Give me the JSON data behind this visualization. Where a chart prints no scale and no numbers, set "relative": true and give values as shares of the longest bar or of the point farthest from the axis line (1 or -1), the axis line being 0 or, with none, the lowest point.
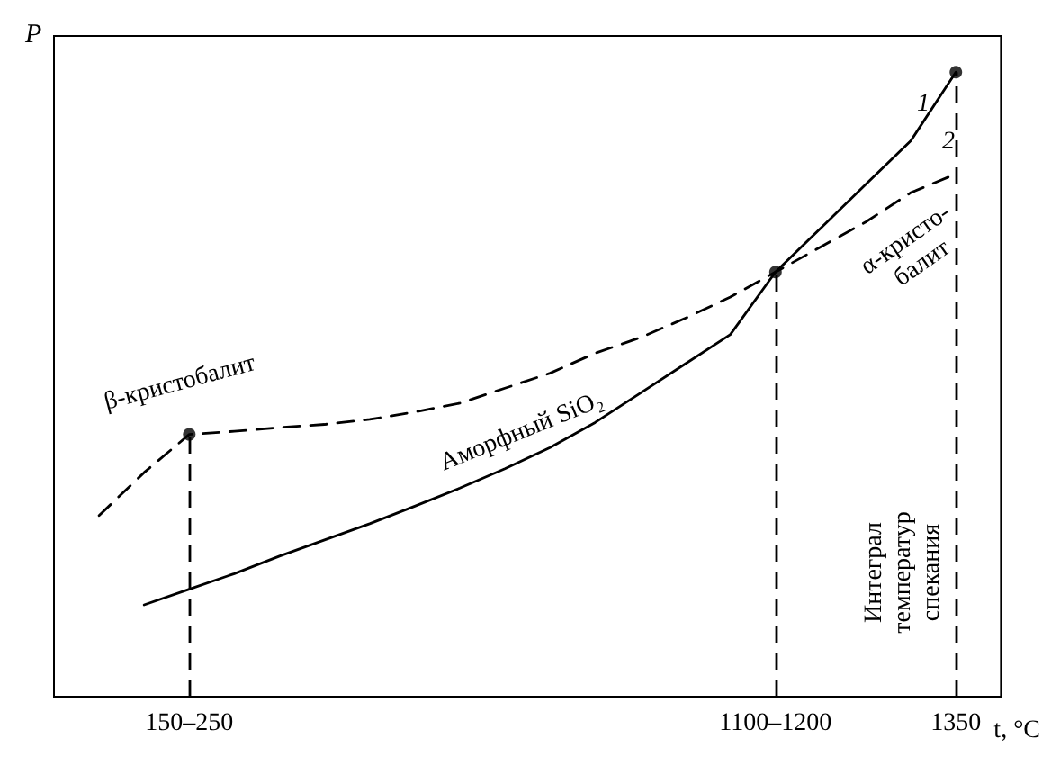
{
  "chart_data": {
    "type": "line",
    "relative": true,
    "xlabel": "t, °C",
    "ylabel": "P",
    "categories": [
      null,
      null,
      null,
      "150–250",
      null,
      null,
      null,
      null,
      null,
      null,
      null,
      null,
      null,
      null,
      null,
      null,
      "1100–1200",
      null,
      null,
      null,
      "1350",
      null
    ],
    "series": [
      {
        "color": "#000000",
        "line_style": "solid",
        "marker": "none",
        "values": [
          null,
          null,
          0.147,
          0.172,
          0.197,
          0.225,
          0.251,
          0.277,
          0.305,
          0.334,
          0.365,
          0.399,
          0.439,
          0.486,
          0.533,
          0.58,
          0.68,
          0.75,
          0.82,
          0.89,
          1,
          null
        ]
      },
      {
        "color": "#000000",
        "line_style": "dashed",
        "marker": "none",
        "values": [
          null,
          0.29,
          0.359,
          0.42,
          0.425,
          0.431,
          0.436,
          0.444,
          0.456,
          0.47,
          0.494,
          0.518,
          0.55,
          0.575,
          0.606,
          0.64,
          0.68,
          0.72,
          0.76,
          0.807,
          0.837,
          null
        ]
      },
      {
        "type": "lollipop",
        "color": "#000000",
        "line_style": "dashed",
        "marker": "circle",
        "values": [
          null,
          null,
          null,
          0.42,
          null,
          null,
          null,
          null,
          null,
          null,
          null,
          null,
          null,
          null,
          null,
          null,
          0.68,
          null,
          null,
          null,
          1,
          null
        ]
      }
    ],
    "annotations": [
      "1",
      "2",
      "β-кристобалит",
      "Аморфный SiO₂",
      "α-кристо-\nбалит",
      "Интеграл\nтемператур\nспекания"
    ]
  }
}
